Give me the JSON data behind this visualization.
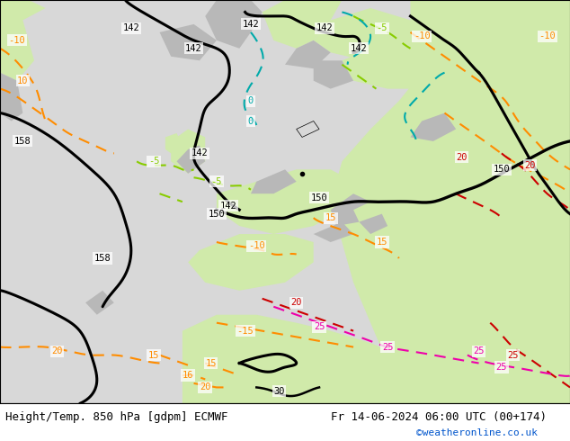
{
  "footer_left": "Height/Temp. 850 hPa [gdpm] ECMWF",
  "footer_right": "Fr 14-06-2024 06:00 UTC (00+174)",
  "footer_url": "©weatheronline.co.uk",
  "fig_width": 6.34,
  "fig_height": 4.9,
  "dpi": 100,
  "footer_fontsize": 9,
  "url_fontsize": 8,
  "bg_ocean": "#d8d8d8",
  "bg_land_light": "#d0eaaa",
  "bg_land_gray": "#b8b8b8",
  "orange": "#ff8c00",
  "green_c": "#88cc00",
  "cyan_c": "#00aaaa",
  "red_c": "#cc0000",
  "pink_c": "#ee00aa",
  "black_lw": 2.2,
  "color_lw": 1.5
}
